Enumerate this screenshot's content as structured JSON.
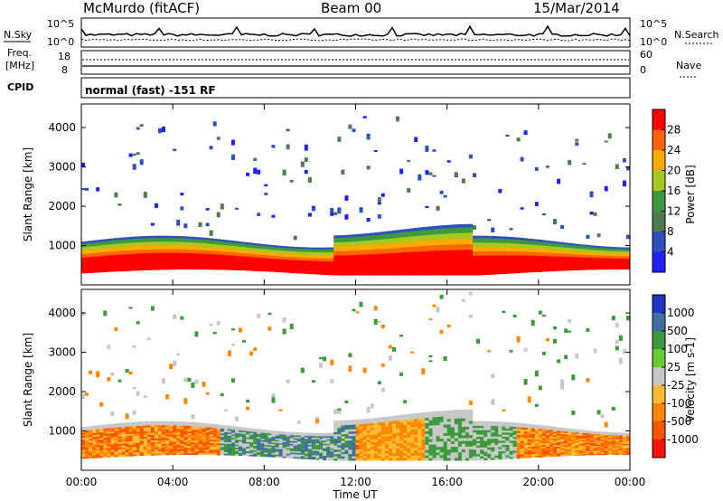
{
  "header": {
    "station": "McMurdo (fitACF)",
    "beam": "Beam 00",
    "date": "15/Mar/2014"
  },
  "strips": {
    "nsky_label": "N.Sky",
    "nsearch_label": "N.Search",
    "nsky_ticks": [
      "10^5",
      "10^0"
    ],
    "nsearch_ticks": [
      "10^5",
      "10^0"
    ],
    "freq_label_1": "Freq.",
    "freq_label_2": "[MHz]",
    "freq_ticks": [
      "18",
      "8"
    ],
    "nave_label": "Nave",
    "nave_ticks": [
      "60",
      "0"
    ],
    "cpid_label": "CPID",
    "cpid_text": "normal (fast) -151 RF"
  },
  "chart_data": [
    {
      "type": "heatmap",
      "name": "Power",
      "ylabel": "Slant Range [km]",
      "yticks": [
        "1000",
        "2000",
        "3000",
        "4000"
      ],
      "colorbar_label": "Power [dB]",
      "colorbar_ticks": [
        "28",
        "24",
        "20",
        "16",
        "12",
        "8",
        "4"
      ],
      "colorbar_colors": [
        "#ff0000",
        "#ff6600",
        "#ffaa00",
        "#a8c820",
        "#3c9a3c",
        "#4e7b4e",
        "#304fbf",
        "#1f1fff"
      ]
    },
    {
      "type": "heatmap",
      "name": "Velocity",
      "ylabel": "Slant Range [km]",
      "yticks": [
        "1000",
        "2000",
        "3000",
        "4000"
      ],
      "xlabel": "Time UT",
      "xticks": [
        "00:00",
        "04:00",
        "08:00",
        "12:00",
        "16:00",
        "20:00",
        "00:00"
      ],
      "colorbar_label": "Velocity [m s-1]",
      "colorbar_ticks": [
        "1000",
        "500",
        "100",
        "25",
        "-25",
        "-100",
        "-500",
        "-1000"
      ],
      "colorbar_colors": [
        "#1f35c8",
        "#3f6f9f",
        "#3c9a3c",
        "#66cc33",
        "#c8c8c8",
        "#ffbb33",
        "#ff8800",
        "#ff5500",
        "#ff1100"
      ]
    }
  ]
}
